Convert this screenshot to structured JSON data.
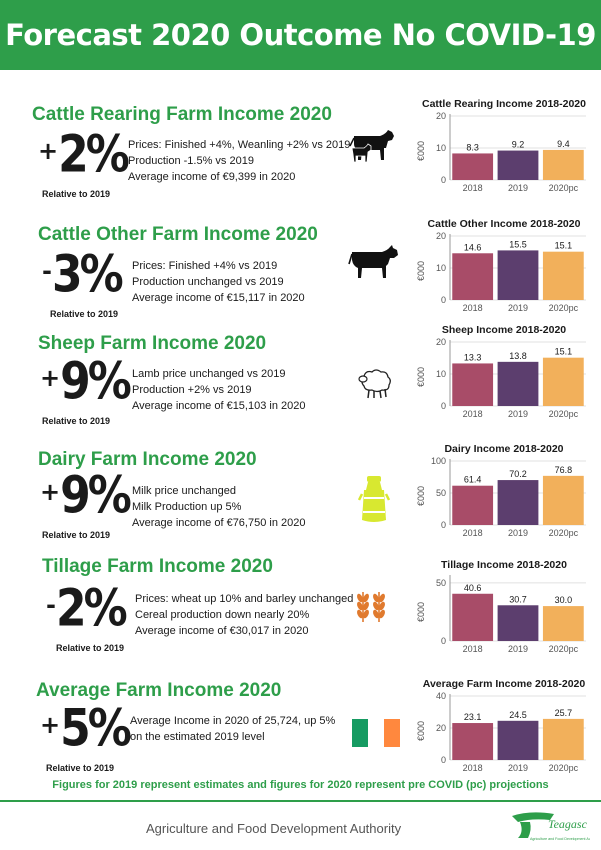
{
  "header": {
    "title": "Forecast 2020 Outcome No COVID-19"
  },
  "sections": [
    {
      "title": "Cattle Rearing Farm Income 2020",
      "sign": "+",
      "value": "2%",
      "relative": "Relative to 2019",
      "lines": [
        "Prices: Finished +4%, Weanling +2% vs 2019",
        "Production -1.5% vs 2019",
        "Average income of €9,399 in 2020"
      ],
      "icon": "cattle-with-calf-icon"
    },
    {
      "title": "Cattle Other Farm Income 2020",
      "sign": "-",
      "value": "3%",
      "relative": "Relative to 2019",
      "lines": [
        "Prices: Finished +4% vs 2019",
        "Production unchanged vs 2019",
        "Average income of €15,117 in 2020"
      ],
      "icon": "bull-icon"
    },
    {
      "title": "Sheep Farm Income 2020",
      "sign": "+",
      "value": "9%",
      "relative": "Relative to 2019",
      "lines": [
        "Lamb price unchanged vs 2019",
        "Production +2% vs 2019",
        "Average income of €15,103 in 2020"
      ],
      "icon": "sheep-icon"
    },
    {
      "title": "Dairy Farm Income 2020",
      "sign": "+",
      "value": "9%",
      "relative": "Relative to 2019",
      "lines": [
        "Milk price unchanged",
        "Milk Production up 5%",
        "Average income of €76,750 in 2020"
      ],
      "icon": "milk-churn-icon"
    },
    {
      "title": "Tillage Farm Income 2020",
      "sign": "-",
      "value": "2%",
      "relative": "Relative to 2019",
      "lines": [
        "Prices: wheat up 10% and barley unchanged",
        "Cereal production down nearly 20%",
        "Average income of €30,017 in 2020"
      ],
      "icon": "wheat-icon"
    },
    {
      "title": "Average Farm Income 2020",
      "sign": "+",
      "value": "5%",
      "relative": "Relative to 2019",
      "lines": [
        "Average Income in 2020 of 25,724, up 5%",
        "on the estimated 2019 level"
      ],
      "icon": "irish-flag-icon"
    }
  ],
  "colors": {
    "green": "#2e9e4a",
    "bar2018": "#a84c68",
    "bar2019": "#5c3e6e",
    "bar2020": "#f2b05b",
    "flag_green": "#169b62",
    "flag_orange": "#ff883e",
    "churn": "#d8e830",
    "wheat": "#e07a2e"
  },
  "chart_data": [
    {
      "type": "bar",
      "title": "Cattle Rearing Income 2018-2020",
      "ylabel": "€000",
      "categories": [
        "2018",
        "2019",
        "2020pc"
      ],
      "values": [
        8.3,
        9.2,
        9.4
      ],
      "labels": [
        "8.3",
        "9.2",
        "9.4"
      ],
      "yticks": [
        0,
        10,
        20
      ],
      "ylim": [
        0,
        20
      ]
    },
    {
      "type": "bar",
      "title": "Cattle Other Income 2018-2020",
      "ylabel": "€000",
      "categories": [
        "2018",
        "2019",
        "2020pc"
      ],
      "values": [
        14.6,
        15.5,
        15.1
      ],
      "labels": [
        "14.6",
        "15.5",
        "15.1"
      ],
      "yticks": [
        0,
        10,
        20
      ],
      "ylim": [
        0,
        20
      ]
    },
    {
      "type": "bar",
      "title": "Sheep Income 2018-2020",
      "ylabel": "€000",
      "categories": [
        "2018",
        "2019",
        "2020pc"
      ],
      "values": [
        13.3,
        13.8,
        15.1
      ],
      "labels": [
        "13.3",
        "13.8",
        "15.1"
      ],
      "yticks": [
        0,
        10,
        20
      ],
      "ylim": [
        0,
        20
      ]
    },
    {
      "type": "bar",
      "title": "Dairy Income 2018-2020",
      "ylabel": "€000",
      "categories": [
        "2018",
        "2019",
        "2020pc"
      ],
      "values": [
        61.4,
        70.2,
        76.8
      ],
      "labels": [
        "61.4",
        "70.2",
        "76.8"
      ],
      "yticks": [
        0,
        50,
        100
      ],
      "ylim": [
        0,
        100
      ]
    },
    {
      "type": "bar",
      "title": "Tillage Income 2018-2020",
      "ylabel": "€000",
      "categories": [
        "2018",
        "2019",
        "2020pc"
      ],
      "values": [
        40.6,
        30.7,
        30.0
      ],
      "labels": [
        "40.6",
        "30.7",
        "30.0"
      ],
      "yticks": [
        0,
        50
      ],
      "ylim": [
        0,
        55
      ]
    },
    {
      "type": "bar",
      "title": "Average Farm Income 2018-2020",
      "ylabel": "€000",
      "categories": [
        "2018",
        "2019",
        "2020pc"
      ],
      "values": [
        23.1,
        24.5,
        25.7
      ],
      "labels": [
        "23.1",
        "24.5",
        "25.7"
      ],
      "yticks": [
        0,
        20,
        40
      ],
      "ylim": [
        0,
        40
      ]
    }
  ],
  "footnote": "Figures for 2019 represent estimates and figures for 2020 represent pre COVID (pc) projections",
  "footer": {
    "authority": "Agriculture and Food Development Authority",
    "logo_text": "Teagasc",
    "logo_subtext": "Agriculture and Food Development Authority"
  }
}
